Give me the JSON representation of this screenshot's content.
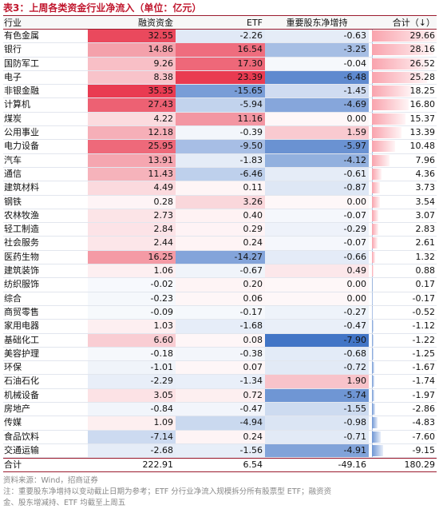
{
  "title": "表3：上周各类资金行业净流入（单位：亿元）",
  "header": [
    "行业",
    "融资资金",
    "ETF",
    "重要股东净增持",
    "合计（↓）"
  ],
  "rows": [
    [
      "有色金属",
      "32.55",
      "-2.26",
      "-0.63",
      "29.66"
    ],
    [
      "银行",
      "14.86",
      "16.54",
      "-3.25",
      "28.16"
    ],
    [
      "国防军工",
      "9.26",
      "17.30",
      "-0.04",
      "26.52"
    ],
    [
      "电子",
      "8.38",
      "23.39",
      "-6.48",
      "25.28"
    ],
    [
      "非银金融",
      "35.35",
      "-15.65",
      "-1.45",
      "18.25"
    ],
    [
      "计算机",
      "27.43",
      "-5.94",
      "-4.69",
      "16.80"
    ],
    [
      "煤炭",
      "4.22",
      "11.16",
      "0.00",
      "15.37"
    ],
    [
      "公用事业",
      "12.18",
      "-0.39",
      "1.59",
      "13.39"
    ],
    [
      "电力设备",
      "25.95",
      "-9.50",
      "-5.97",
      "10.48"
    ],
    [
      "汽车",
      "13.91",
      "-1.83",
      "-4.12",
      "7.96"
    ],
    [
      "通信",
      "11.43",
      "-6.46",
      "-0.61",
      "4.36"
    ],
    [
      "建筑材料",
      "4.49",
      "0.11",
      "-0.87",
      "3.73"
    ],
    [
      "钢铁",
      "0.28",
      "3.26",
      "0.00",
      "3.54"
    ],
    [
      "农林牧渔",
      "2.73",
      "0.40",
      "-0.07",
      "3.07"
    ],
    [
      "轻工制造",
      "2.84",
      "0.29",
      "-0.29",
      "2.83"
    ],
    [
      "社会服务",
      "2.44",
      "0.24",
      "-0.07",
      "2.61"
    ],
    [
      "医药生物",
      "16.25",
      "-14.27",
      "-0.66",
      "1.32"
    ],
    [
      "建筑装饰",
      "1.06",
      "-0.67",
      "0.49",
      "0.88"
    ],
    [
      "纺织服饰",
      "-0.02",
      "0.20",
      "0.00",
      "0.17"
    ],
    [
      "综合",
      "-0.23",
      "0.06",
      "0.00",
      "-0.17"
    ],
    [
      "商贸零售",
      "-0.09",
      "-0.17",
      "-0.27",
      "-0.52"
    ],
    [
      "家用电器",
      "1.03",
      "-1.68",
      "-0.47",
      "-1.12"
    ],
    [
      "基础化工",
      "6.60",
      "0.08",
      "-7.90",
      "-1.22"
    ],
    [
      "美容护理",
      "-0.18",
      "-0.38",
      "-0.68",
      "-1.25"
    ],
    [
      "环保",
      "-1.01",
      "0.07",
      "-0.72",
      "-1.67"
    ],
    [
      "石油石化",
      "-2.29",
      "-1.34",
      "1.90",
      "-1.74"
    ],
    [
      "机械设备",
      "3.05",
      "0.72",
      "-5.74",
      "-1.97"
    ],
    [
      "房地产",
      "-0.84",
      "-0.47",
      "-1.55",
      "-2.86"
    ],
    [
      "传媒",
      "1.09",
      "-4.94",
      "-0.98",
      "-4.83"
    ],
    [
      "食品饮料",
      "-7.14",
      "0.24",
      "-0.71",
      "-7.60"
    ],
    [
      "交通运输",
      "-2.68",
      "-1.56",
      "-4.91",
      "-9.15"
    ]
  ],
  "total": [
    "合计",
    "222.91",
    "6.54",
    "-49.16",
    "180.29"
  ],
  "source": "资料来源：Wind，招商证券",
  "note_line1": "注：重要股东净增持以变动截止日期为参考；ETF 分行业净流入规模拆分所有股票型 ETF；融资资",
  "note_line2": "金、股东增减持、ETF 均截至上周五",
  "colors": {
    "positive": "#e8334a",
    "negative": "#3a6fc4",
    "title": "#c0172e",
    "rule": "#9b1b2e"
  }
}
